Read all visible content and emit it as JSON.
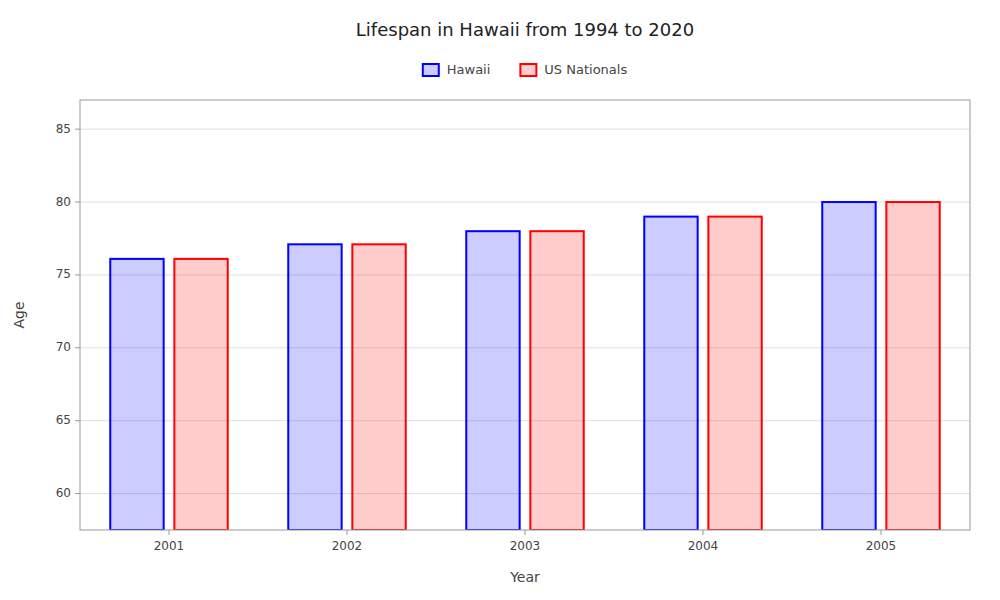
{
  "chart_data": {
    "type": "bar",
    "title": "Lifespan in Hawaii from 1994 to 2020",
    "xlabel": "Year",
    "ylabel": "Age",
    "categories": [
      "2001",
      "2002",
      "2003",
      "2004",
      "2005"
    ],
    "series": [
      {
        "name": "Hawaii",
        "color": "#0000ff",
        "values": [
          76.1,
          77.1,
          78.0,
          79.0,
          80.0
        ]
      },
      {
        "name": "US Nationals",
        "color": "#ff0000",
        "values": [
          76.1,
          77.1,
          78.0,
          79.0,
          80.0
        ]
      }
    ],
    "ylim": [
      57.5,
      87
    ],
    "yticks": [
      60,
      65,
      70,
      75,
      80,
      85
    ],
    "grid": true,
    "legend": "top"
  }
}
